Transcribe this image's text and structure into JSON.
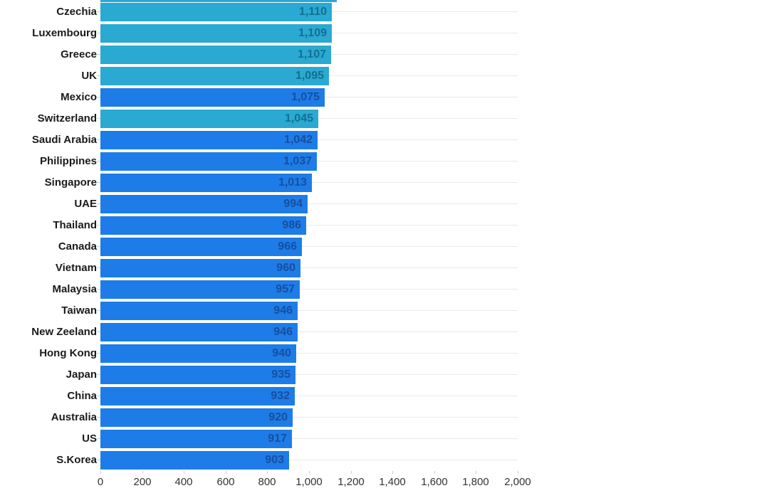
{
  "chart_data": {
    "type": "bar",
    "orientation": "horizontal",
    "title": "",
    "xlabel": "",
    "ylabel": "",
    "xlim": [
      0,
      2000
    ],
    "grid": "horizontal-category-lines",
    "legend": "none",
    "x_ticks": [
      0,
      200,
      400,
      600,
      800,
      1000,
      1200,
      1400,
      1600,
      1800,
      2000
    ],
    "x_tick_labels": [
      "0",
      "200",
      "400",
      "600",
      "800",
      "1,000",
      "1,200",
      "1,400",
      "1,600",
      "1,800",
      "2,000"
    ],
    "categories": [
      "Czechia",
      "Luxembourg",
      "Greece",
      "UK",
      "Mexico",
      "Switzerland",
      "Saudi Arabia",
      "Philippines",
      "Singapore",
      "UAE",
      "Thailand",
      "Canada",
      "Vietnam",
      "Malaysia",
      "Taiwan",
      "New Zeeland",
      "Hong Kong",
      "Japan",
      "China",
      "Australia",
      "US",
      "S.Korea"
    ],
    "values": [
      1110,
      1109,
      1107,
      1095,
      1075,
      1045,
      1042,
      1037,
      1013,
      994,
      986,
      966,
      960,
      957,
      946,
      946,
      940,
      935,
      932,
      920,
      917,
      903
    ],
    "value_labels": [
      "1,110",
      "1,109",
      "1,107",
      "1,095",
      "1,075",
      "1,045",
      "1,042",
      "1,037",
      "1,013",
      "994",
      "986",
      "966",
      "960",
      "957",
      "946",
      "946",
      "940",
      "935",
      "932",
      "920",
      "917",
      "903"
    ],
    "bar_styles": [
      "teal",
      "teal",
      "teal",
      "teal",
      "blue",
      "teal",
      "blue",
      "blue",
      "blue",
      "blue",
      "blue",
      "blue",
      "blue",
      "blue",
      "blue",
      "blue",
      "blue",
      "blue",
      "blue",
      "blue",
      "blue",
      "blue"
    ],
    "partial_top_bar": {
      "visible": true,
      "approx_value": 1134,
      "style": "teal"
    },
    "colors": {
      "teal_bar": "#2aa9d2",
      "blue_bar": "#1e7ce8",
      "teal_value_text": "#13708f",
      "blue_value_text": "#174f9c",
      "category_text": "#1a1a1a",
      "axis_text": "#333333",
      "gridline": "#e9e9e9",
      "tick": "#cccccc",
      "background": "#ffffff"
    }
  }
}
